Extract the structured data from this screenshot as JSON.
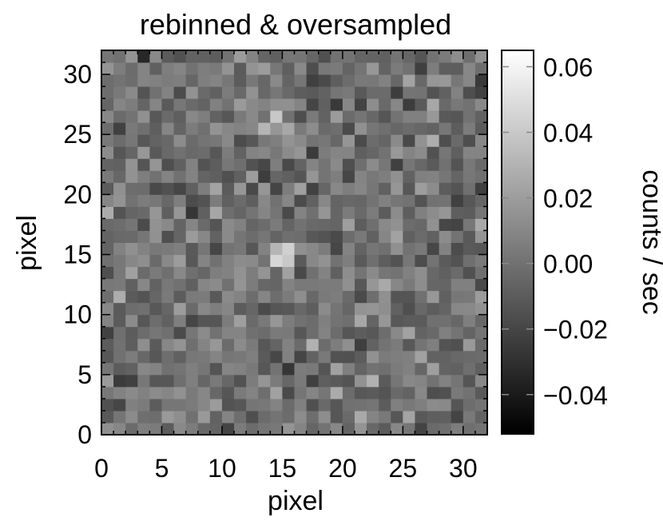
{
  "chart_data": {
    "type": "heatmap",
    "title": "rebinned & oversampled",
    "xlabel": "pixel",
    "ylabel": "pixel",
    "colorbar_label": "counts / sec",
    "xlim": [
      0,
      32
    ],
    "ylim": [
      0,
      32
    ],
    "x_ticks": [
      "0",
      "5",
      "10",
      "15",
      "20",
      "25",
      "30"
    ],
    "y_ticks": [
      "0",
      "5",
      "10",
      "15",
      "20",
      "25",
      "30"
    ],
    "colorbar_ticks": [
      "0.06",
      "0.04",
      "0.02",
      "0.00",
      "−0.02",
      "−0.04"
    ],
    "colorbar_range": [
      -0.052,
      0.065
    ],
    "colormap": "grayscale",
    "grid": 32,
    "peak": {
      "x": 14.5,
      "y": 14.5,
      "value": 0.065
    },
    "note": "Grid values estimated from image: background noise around 0.00 counts/sec with a bright source near pixel (14,14)."
  }
}
